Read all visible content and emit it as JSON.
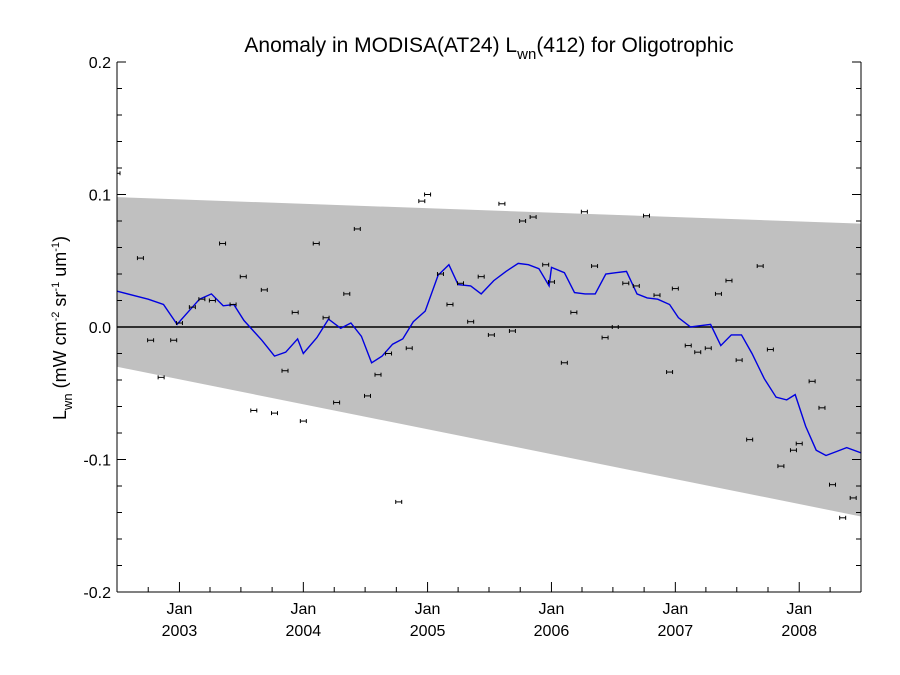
{
  "chart_data": {
    "type": "scatter",
    "title": {
      "prefix": "Anomaly in MODISA(AT24) L",
      "subscript": "wn",
      "suffix": "(412) for Oligotrophic"
    },
    "ylabel": {
      "main": "L",
      "sub": "wn",
      "units_open": " (mW cm",
      "sup1": "-2",
      "units_mid": " sr",
      "sup2": "-1",
      "units_mid2": " um",
      "sup3": "-1",
      "units_close": ")"
    },
    "x_range": [
      "2002-07-01",
      "2008-07-01"
    ],
    "ylim": [
      -0.2,
      0.2
    ],
    "y_ticks": [
      {
        "value": 0.2,
        "label": "0.2"
      },
      {
        "value": 0.1,
        "label": "0.1"
      },
      {
        "value": 0.0,
        "label": "0.0"
      },
      {
        "value": -0.1,
        "label": "-0.1"
      },
      {
        "value": -0.2,
        "label": "-0.2"
      }
    ],
    "x_ticks": [
      {
        "date": "2003-01-01",
        "line1": "Jan",
        "line2": "2003"
      },
      {
        "date": "2004-01-01",
        "line1": "Jan",
        "line2": "2004"
      },
      {
        "date": "2005-01-01",
        "line1": "Jan",
        "line2": "2005"
      },
      {
        "date": "2006-01-01",
        "line1": "Jan",
        "line2": "2006"
      },
      {
        "date": "2007-01-01",
        "line1": "Jan",
        "line2": "2007"
      },
      {
        "date": "2008-01-01",
        "line1": "Jan",
        "line2": "2008"
      }
    ],
    "grid": false,
    "zero_line": true,
    "band": {
      "color": "#c0c0c0",
      "upper": [
        {
          "x": "2002-07-01",
          "y": 0.098
        },
        {
          "x": "2008-07-01",
          "y": 0.078
        }
      ],
      "lower": [
        {
          "x": "2002-07-01",
          "y": -0.03
        },
        {
          "x": "2008-07-01",
          "y": -0.143
        }
      ]
    },
    "points": {
      "color": "#000000",
      "values": [
        {
          "x": "2002-07-01",
          "y": 0.116
        },
        {
          "x": "2002-09-08",
          "y": 0.052
        },
        {
          "x": "2002-10-08",
          "y": -0.01
        },
        {
          "x": "2002-11-08",
          "y": -0.038
        },
        {
          "x": "2002-12-15",
          "y": -0.01
        },
        {
          "x": "2003-01-01",
          "y": 0.003
        },
        {
          "x": "2003-02-08",
          "y": 0.015
        },
        {
          "x": "2003-03-08",
          "y": 0.021
        },
        {
          "x": "2003-04-08",
          "y": 0.02
        },
        {
          "x": "2003-05-08",
          "y": 0.063
        },
        {
          "x": "2003-06-08",
          "y": 0.017
        },
        {
          "x": "2003-07-08",
          "y": 0.038
        },
        {
          "x": "2003-08-08",
          "y": -0.063
        },
        {
          "x": "2003-09-08",
          "y": 0.028
        },
        {
          "x": "2003-10-08",
          "y": -0.065
        },
        {
          "x": "2003-11-08",
          "y": -0.033
        },
        {
          "x": "2003-12-08",
          "y": 0.011
        },
        {
          "x": "2004-01-01",
          "y": -0.071
        },
        {
          "x": "2004-02-08",
          "y": 0.063
        },
        {
          "x": "2004-03-08",
          "y": 0.007
        },
        {
          "x": "2004-04-08",
          "y": -0.057
        },
        {
          "x": "2004-05-08",
          "y": 0.025
        },
        {
          "x": "2004-06-08",
          "y": 0.074
        },
        {
          "x": "2004-07-08",
          "y": -0.052
        },
        {
          "x": "2004-08-08",
          "y": -0.036
        },
        {
          "x": "2004-09-08",
          "y": -0.02
        },
        {
          "x": "2004-10-08",
          "y": -0.132
        },
        {
          "x": "2004-11-08",
          "y": -0.016
        },
        {
          "x": "2004-12-15",
          "y": 0.095
        },
        {
          "x": "2005-01-01",
          "y": 0.1
        },
        {
          "x": "2005-02-08",
          "y": 0.04
        },
        {
          "x": "2005-03-08",
          "y": 0.017
        },
        {
          "x": "2005-04-08",
          "y": 0.033
        },
        {
          "x": "2005-05-08",
          "y": 0.004
        },
        {
          "x": "2005-06-08",
          "y": 0.038
        },
        {
          "x": "2005-07-08",
          "y": -0.006
        },
        {
          "x": "2005-08-08",
          "y": 0.093
        },
        {
          "x": "2005-09-08",
          "y": -0.003
        },
        {
          "x": "2005-10-08",
          "y": 0.08
        },
        {
          "x": "2005-11-08",
          "y": 0.083
        },
        {
          "x": "2005-12-15",
          "y": 0.047
        },
        {
          "x": "2006-01-01",
          "y": 0.034
        },
        {
          "x": "2006-02-08",
          "y": -0.027
        },
        {
          "x": "2006-03-08",
          "y": 0.011
        },
        {
          "x": "2006-04-08",
          "y": 0.087
        },
        {
          "x": "2006-05-08",
          "y": 0.046
        },
        {
          "x": "2006-06-08",
          "y": -0.008
        },
        {
          "x": "2006-07-08",
          "y": 0.0
        },
        {
          "x": "2006-08-08",
          "y": 0.033
        },
        {
          "x": "2006-09-08",
          "y": 0.031
        },
        {
          "x": "2006-10-08",
          "y": 0.084
        },
        {
          "x": "2006-11-08",
          "y": 0.024
        },
        {
          "x": "2006-12-15",
          "y": -0.034
        },
        {
          "x": "2007-01-01",
          "y": 0.029
        },
        {
          "x": "2007-02-08",
          "y": -0.014
        },
        {
          "x": "2007-03-08",
          "y": -0.019
        },
        {
          "x": "2007-04-08",
          "y": -0.016
        },
        {
          "x": "2007-05-08",
          "y": 0.025
        },
        {
          "x": "2007-06-08",
          "y": 0.035
        },
        {
          "x": "2007-07-08",
          "y": -0.025
        },
        {
          "x": "2007-08-08",
          "y": -0.085
        },
        {
          "x": "2007-09-08",
          "y": 0.046
        },
        {
          "x": "2007-10-08",
          "y": -0.017
        },
        {
          "x": "2007-11-08",
          "y": -0.105
        },
        {
          "x": "2007-12-15",
          "y": -0.093
        },
        {
          "x": "2008-01-01",
          "y": -0.088
        },
        {
          "x": "2008-02-08",
          "y": -0.041
        },
        {
          "x": "2008-03-08",
          "y": -0.061
        },
        {
          "x": "2008-04-08",
          "y": -0.119
        },
        {
          "x": "2008-05-08",
          "y": -0.144
        },
        {
          "x": "2008-06-08",
          "y": -0.129
        }
      ]
    },
    "smoothed_line": {
      "color": "#0000e0",
      "values": [
        {
          "x": "2002-07-01",
          "y": 0.027
        },
        {
          "x": "2002-10-01",
          "y": 0.021
        },
        {
          "x": "2002-11-15",
          "y": 0.017
        },
        {
          "x": "2002-12-25",
          "y": 0.002
        },
        {
          "x": "2003-02-01",
          "y": 0.013
        },
        {
          "x": "2003-03-01",
          "y": 0.021
        },
        {
          "x": "2003-04-05",
          "y": 0.025
        },
        {
          "x": "2003-05-10",
          "y": 0.016
        },
        {
          "x": "2003-06-10",
          "y": 0.017
        },
        {
          "x": "2003-07-10",
          "y": 0.005
        },
        {
          "x": "2003-09-01",
          "y": -0.01
        },
        {
          "x": "2003-10-08",
          "y": -0.022
        },
        {
          "x": "2003-11-10",
          "y": -0.019
        },
        {
          "x": "2003-12-15",
          "y": -0.009
        },
        {
          "x": "2004-01-01",
          "y": -0.02
        },
        {
          "x": "2004-02-10",
          "y": -0.008
        },
        {
          "x": "2004-03-15",
          "y": 0.006
        },
        {
          "x": "2004-04-20",
          "y": -0.001
        },
        {
          "x": "2004-05-20",
          "y": 0.003
        },
        {
          "x": "2004-06-20",
          "y": -0.007
        },
        {
          "x": "2004-07-20",
          "y": -0.027
        },
        {
          "x": "2004-08-20",
          "y": -0.022
        },
        {
          "x": "2004-09-20",
          "y": -0.013
        },
        {
          "x": "2004-10-20",
          "y": -0.009
        },
        {
          "x": "2004-11-20",
          "y": 0.004
        },
        {
          "x": "2004-12-25",
          "y": 0.012
        },
        {
          "x": "2005-02-01",
          "y": 0.039
        },
        {
          "x": "2005-03-05",
          "y": 0.047
        },
        {
          "x": "2005-04-01",
          "y": 0.032
        },
        {
          "x": "2005-05-08",
          "y": 0.031
        },
        {
          "x": "2005-06-08",
          "y": 0.025
        },
        {
          "x": "2005-07-15",
          "y": 0.035
        },
        {
          "x": "2005-08-20",
          "y": 0.042
        },
        {
          "x": "2005-09-25",
          "y": 0.048
        },
        {
          "x": "2005-10-25",
          "y": 0.047
        },
        {
          "x": "2005-11-25",
          "y": 0.044
        },
        {
          "x": "2005-12-25",
          "y": 0.031
        },
        {
          "x": "2006-01-01",
          "y": 0.045
        },
        {
          "x": "2006-02-08",
          "y": 0.041
        },
        {
          "x": "2006-03-10",
          "y": 0.026
        },
        {
          "x": "2006-04-10",
          "y": 0.025
        },
        {
          "x": "2006-05-10",
          "y": 0.025
        },
        {
          "x": "2006-06-10",
          "y": 0.04
        },
        {
          "x": "2006-07-10",
          "y": 0.041
        },
        {
          "x": "2006-08-10",
          "y": 0.042
        },
        {
          "x": "2006-09-10",
          "y": 0.025
        },
        {
          "x": "2006-10-10",
          "y": 0.022
        },
        {
          "x": "2006-11-10",
          "y": 0.021
        },
        {
          "x": "2006-12-15",
          "y": 0.017
        },
        {
          "x": "2007-01-10",
          "y": 0.007
        },
        {
          "x": "2007-02-15",
          "y": 0.0
        },
        {
          "x": "2007-03-15",
          "y": 0.001
        },
        {
          "x": "2007-04-15",
          "y": 0.002
        },
        {
          "x": "2007-05-15",
          "y": -0.014
        },
        {
          "x": "2007-06-15",
          "y": -0.006
        },
        {
          "x": "2007-07-15",
          "y": -0.006
        },
        {
          "x": "2007-08-15",
          "y": -0.02
        },
        {
          "x": "2007-09-20",
          "y": -0.039
        },
        {
          "x": "2007-10-25",
          "y": -0.053
        },
        {
          "x": "2007-11-25",
          "y": -0.055
        },
        {
          "x": "2007-12-20",
          "y": -0.051
        },
        {
          "x": "2008-01-20",
          "y": -0.075
        },
        {
          "x": "2008-02-20",
          "y": -0.093
        },
        {
          "x": "2008-03-20",
          "y": -0.097
        },
        {
          "x": "2008-04-20",
          "y": -0.094
        },
        {
          "x": "2008-05-20",
          "y": -0.091
        },
        {
          "x": "2008-07-01",
          "y": -0.095
        }
      ]
    }
  }
}
